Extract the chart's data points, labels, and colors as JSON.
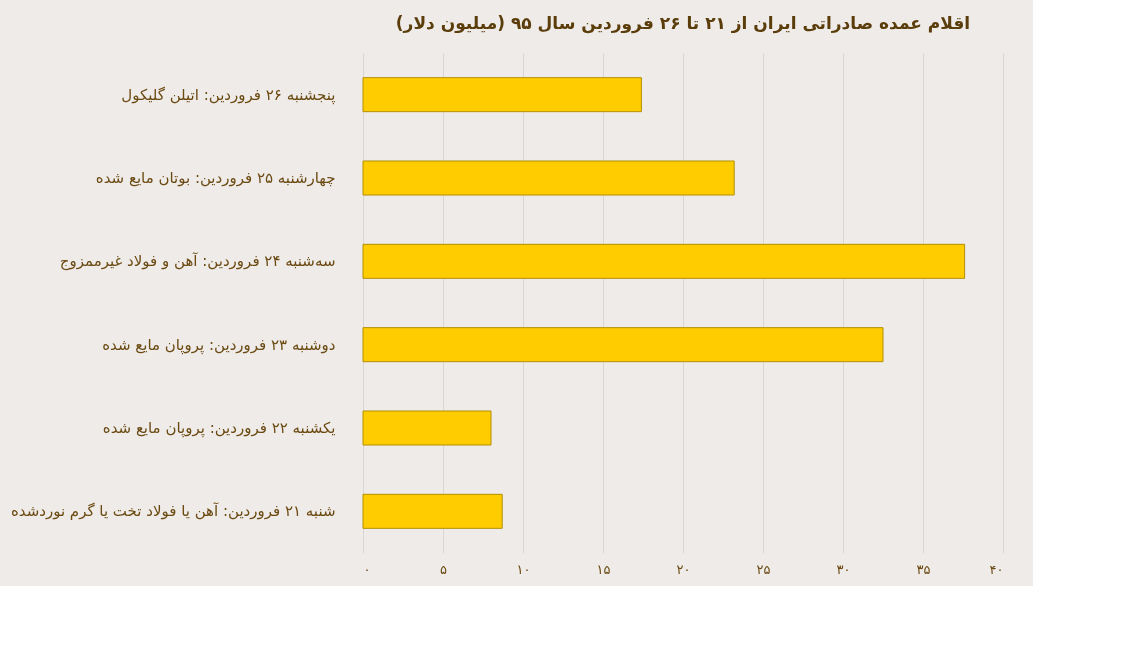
{
  "chart_data": {
    "type": "bar",
    "orientation": "horizontal",
    "title": "اقلام عمده صادراتی ایران از ۲۱ تا ۲۶ فروردین سال ۹۵ (میلیون دلار)",
    "categories": [
      "پنجشنبه ۲۶ فروردین: اتیلن گلیکول",
      "چهارشنبه ۲۵ فروردین: بوتان مایع شده",
      "سه‌شنبه ۲۴ فروردین: آهن و فولاد غیرممزوج",
      "دوشنبه ۲۳ فروردین: پروپان مایع شده",
      "یکشنبه ۲۲ فروردین: پروپان مایع شده",
      "شنبه ۲۱ فروردین: آهن یا فولاد تخت یا گرم نوردشده"
    ],
    "values": [
      17.4,
      23.2,
      37.6,
      32.5,
      8.0,
      8.7
    ],
    "color": "#ffcc00",
    "xlim": [
      0,
      40
    ],
    "xticks": [
      {
        "value": 0,
        "label": "۰"
      },
      {
        "value": 5,
        "label": "۵"
      },
      {
        "value": 10,
        "label": "۱۰"
      },
      {
        "value": 15,
        "label": "۱۵"
      },
      {
        "value": 20,
        "label": "۲۰"
      },
      {
        "value": 25,
        "label": "۲۵"
      },
      {
        "value": 30,
        "label": "۳۰"
      },
      {
        "value": 35,
        "label": "۳۵"
      },
      {
        "value": 40,
        "label": "۴۰"
      }
    ],
    "grid": "x"
  }
}
